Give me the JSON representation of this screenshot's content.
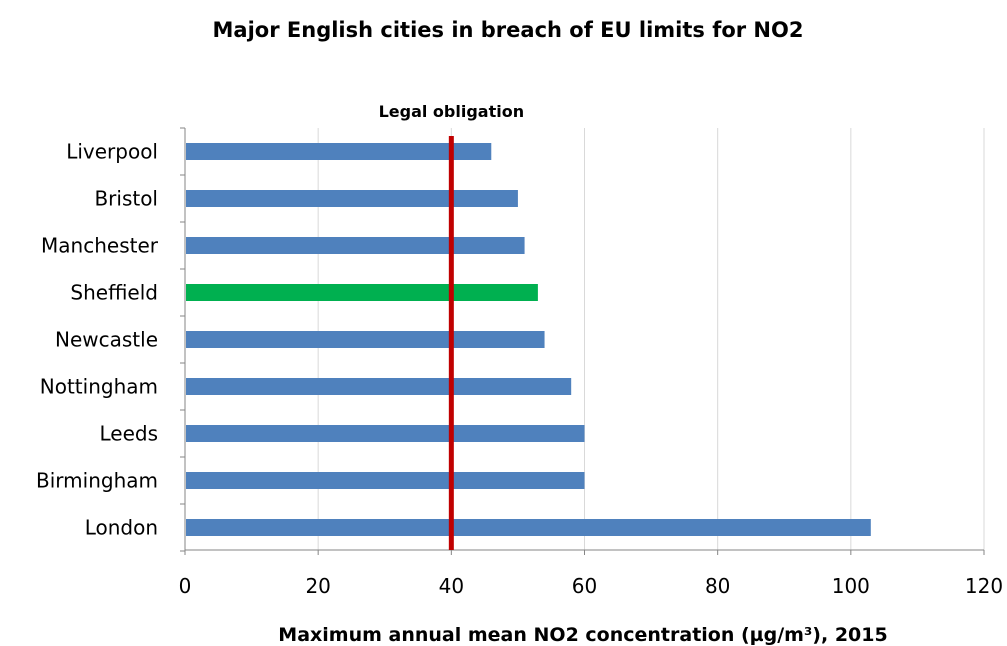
{
  "chart_data": {
    "type": "bar",
    "orientation": "horizontal",
    "title": "Major English cities in breach of EU limits for NO2",
    "xlabel": "Maximum annual mean NO2 concentration (µg/m³), 2015",
    "ylabel": "",
    "xlim": [
      0,
      120
    ],
    "xticks": [
      0,
      20,
      40,
      60,
      80,
      100,
      120
    ],
    "grid": true,
    "categories": [
      "Liverpool",
      "Bristol",
      "Manchester",
      "Sheffield",
      "Newcastle",
      "Nottingham",
      "Leeds",
      "Birmingham",
      "London"
    ],
    "values": [
      46,
      50,
      51,
      53,
      54,
      58,
      60,
      60,
      103
    ],
    "bar_colors": [
      "#4f81bd",
      "#4f81bd",
      "#4f81bd",
      "#00b050",
      "#4f81bd",
      "#4f81bd",
      "#4f81bd",
      "#4f81bd",
      "#4f81bd"
    ],
    "reference_line": {
      "label": "Legal obligation",
      "value": 40,
      "color": "#c00000"
    }
  }
}
